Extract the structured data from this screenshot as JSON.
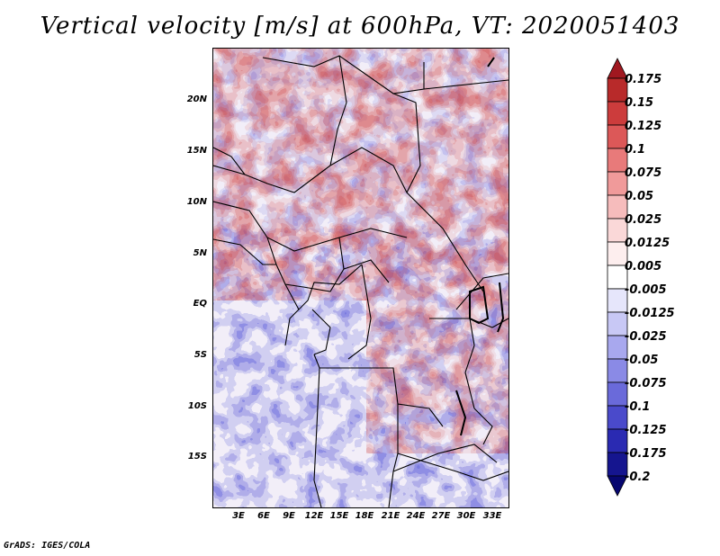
{
  "title": "Vertical velocity [m/s] at 600hPa, VT: 2020051403",
  "footer": "GrADS: IGES/COLA",
  "lat_labels": [
    "20N",
    "15N",
    "10N",
    "5N",
    "EQ",
    "5S",
    "10S",
    "15S"
  ],
  "lon_labels": [
    "3E",
    "6E",
    "9E",
    "12E",
    "15E",
    "18E",
    "21E",
    "24E",
    "27E",
    "30E",
    "33E"
  ],
  "colorbar": {
    "labels": [
      "0.175",
      "0.15",
      "0.125",
      "0.1",
      "0.075",
      "0.05",
      "0.025",
      "0.0125",
      "0.005",
      "-0.005",
      "-0.0125",
      "-0.025",
      "-0.05",
      "-0.075",
      "-0.1",
      "-0.125",
      "-0.175",
      "-0.2"
    ],
    "colors": [
      "#a01820",
      "#b82a2a",
      "#cc3c3c",
      "#dc5858",
      "#e87a7a",
      "#f09a9a",
      "#f6bcbc",
      "#fad8d8",
      "#fdeeee",
      "#ffffff",
      "#e6e6fb",
      "#c8c8f5",
      "#a8a8ee",
      "#8a8ae6",
      "#6a6ada",
      "#4a4acb",
      "#2a2ab2",
      "#15158f",
      "#070770"
    ]
  }
}
